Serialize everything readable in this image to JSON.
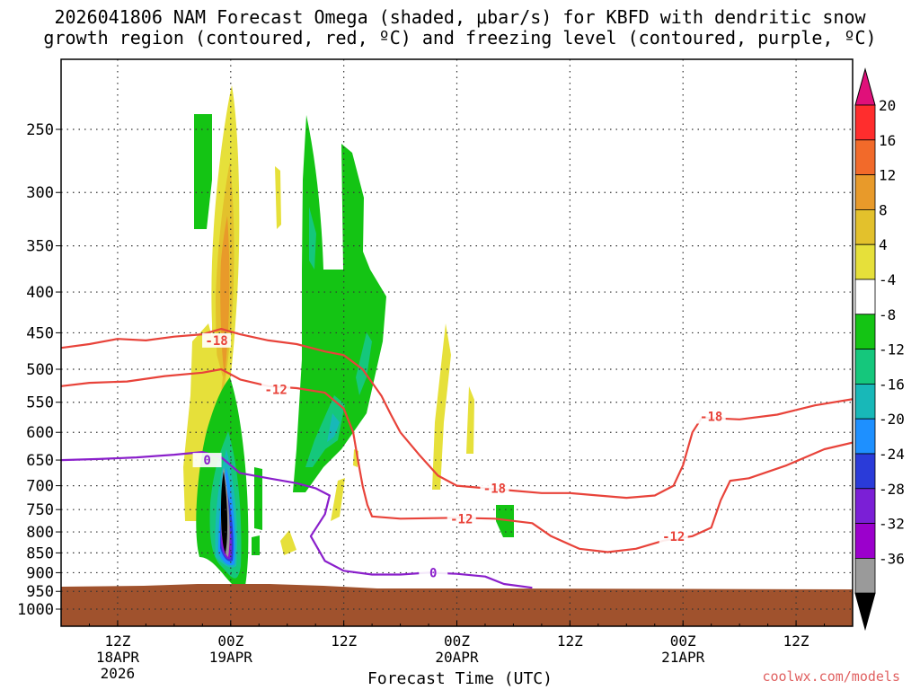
{
  "title_line1": "2026041806 NAM Forecast Omega (shaded, μbar/s) for KBFD with dendritic snow",
  "title_line2": "growth region (contoured, red, ºC) and freezing level (contoured, purple, ºC)",
  "credit": "coolwx.com/models",
  "chart_data": {
    "type": "heatmap",
    "title": "2026041806 NAM Forecast Omega (shaded, μbar/s) for KBFD with dendritic snow growth region (contoured, red, ºC) and freezing level (contoured, purple, ºC)",
    "xlabel": "Forecast Time (UTC)",
    "ylabel": "",
    "x_range_hours": [
      6,
      90
    ],
    "y_axis": "pressure (log, inverted)",
    "ylim": [
      1000,
      200
    ],
    "grid": true,
    "y_ticks": [
      250,
      300,
      350,
      400,
      450,
      500,
      550,
      600,
      650,
      700,
      750,
      800,
      850,
      900,
      950,
      1000
    ],
    "x_ticks": [
      {
        "hour": 12,
        "l1": "12Z",
        "l2": "18APR",
        "l3": "2026"
      },
      {
        "hour": 24,
        "l1": "00Z",
        "l2": "19APR",
        "l3": ""
      },
      {
        "hour": 36,
        "l1": "12Z",
        "l2": "",
        "l3": ""
      },
      {
        "hour": 48,
        "l1": "00Z",
        "l2": "20APR",
        "l3": ""
      },
      {
        "hour": 60,
        "l1": "12Z",
        "l2": "",
        "l3": ""
      },
      {
        "hour": 72,
        "l1": "00Z",
        "l2": "21APR",
        "l3": ""
      },
      {
        "hour": 84,
        "l1": "12Z",
        "l2": "",
        "l3": ""
      }
    ],
    "colorbar": {
      "ticks": [
        "20",
        "16",
        "12",
        "8",
        "4",
        "-4",
        "-8",
        "-12",
        "-16",
        "-20",
        "-24",
        "-28",
        "-32",
        "-36"
      ],
      "bins": [
        "#ff2d2d",
        "#f26a2a",
        "#e89a2a",
        "#e3c12c",
        "#e6e03a",
        "#ffffff",
        "#14c414",
        "#15c77c",
        "#18b8b8",
        "#1e90ff",
        "#2a3bd9",
        "#7b1fd6",
        "#9b00cc",
        "#9a9a9a"
      ],
      "top_arrow": "#e0107a",
      "bottom_arrow": "#000000"
    },
    "omega_regions": [
      {
        "name": "Strong rising motion near 00Z 19APR",
        "hour": 23.8,
        "p_top": 470,
        "p_bottom": 905,
        "min": -36
      },
      {
        "name": "Upper sinking motion near 00Z 19APR",
        "hour": 23.5,
        "p_top": 205,
        "p_bottom": 520,
        "max": 12
      },
      {
        "name": "Rising motion 12Z 19APR",
        "hour": 33,
        "p_top": 230,
        "p_bottom": 720,
        "min": -16
      },
      {
        "name": "Weak sinking motion 19APR",
        "hour": 46,
        "p_top": 460,
        "p_bottom": 720,
        "max": 8
      },
      {
        "name": "Weak rising motion 20APR",
        "hour": 53.5,
        "p_top": 760,
        "p_bottom": 835,
        "min": -8
      }
    ],
    "contours": [
      {
        "label": "-18",
        "color": "#e8433a",
        "points": [
          [
            6,
            470
          ],
          [
            9,
            465
          ],
          [
            12,
            458
          ],
          [
            15,
            460
          ],
          [
            18,
            455
          ],
          [
            21,
            452
          ],
          [
            23,
            445
          ],
          [
            25,
            452
          ],
          [
            28,
            460
          ],
          [
            31,
            465
          ],
          [
            34,
            475
          ],
          [
            36,
            480
          ],
          [
            38,
            500
          ],
          [
            40,
            540
          ],
          [
            41,
            570
          ],
          [
            42,
            600
          ],
          [
            44,
            640
          ],
          [
            46,
            680
          ],
          [
            48,
            700
          ],
          [
            51,
            705
          ],
          [
            54,
            710
          ],
          [
            57,
            715
          ],
          [
            60,
            715
          ],
          [
            63,
            720
          ],
          [
            66,
            725
          ],
          [
            69,
            720
          ],
          [
            71,
            700
          ],
          [
            72,
            660
          ],
          [
            73,
            600
          ],
          [
            74,
            575
          ],
          [
            78,
            578
          ],
          [
            82,
            570
          ],
          [
            86,
            555
          ],
          [
            90,
            545
          ]
        ],
        "label_at": [
          [
            22.5,
            460
          ],
          [
            52,
            705
          ],
          [
            75,
            573
          ]
        ]
      },
      {
        "label": "-12",
        "color": "#e8433a",
        "points": [
          [
            6,
            525
          ],
          [
            9,
            520
          ],
          [
            13,
            518
          ],
          [
            17,
            510
          ],
          [
            21,
            505
          ],
          [
            23,
            500
          ],
          [
            25,
            515
          ],
          [
            28,
            525
          ],
          [
            31,
            528
          ],
          [
            34,
            535
          ],
          [
            36,
            560
          ],
          [
            37,
            600
          ],
          [
            37.5,
            650
          ],
          [
            38,
            700
          ],
          [
            38.5,
            740
          ],
          [
            39,
            765
          ],
          [
            42,
            770
          ],
          [
            48,
            768
          ],
          [
            52,
            770
          ],
          [
            56,
            780
          ],
          [
            58,
            810
          ],
          [
            61,
            840
          ],
          [
            64,
            848
          ],
          [
            67,
            840
          ],
          [
            70,
            820
          ],
          [
            73,
            810
          ],
          [
            75,
            790
          ],
          [
            76,
            730
          ],
          [
            77,
            690
          ],
          [
            79,
            685
          ],
          [
            83,
            660
          ],
          [
            87,
            630
          ],
          [
            90,
            618
          ]
        ],
        "label_at": [
          [
            28.8,
            530
          ],
          [
            48.5,
            770
          ],
          [
            71,
            810
          ]
        ]
      },
      {
        "label": "0",
        "color": "#8a1fcb",
        "points": [
          [
            6,
            650
          ],
          [
            10,
            648
          ],
          [
            14,
            645
          ],
          [
            18,
            640
          ],
          [
            21,
            635
          ],
          [
            23,
            645
          ],
          [
            25,
            675
          ],
          [
            28,
            685
          ],
          [
            31,
            695
          ],
          [
            33,
            705
          ],
          [
            34.5,
            720
          ],
          [
            34,
            760
          ],
          [
            32.5,
            810
          ],
          [
            34,
            870
          ],
          [
            36,
            895
          ],
          [
            39,
            905
          ],
          [
            42,
            905
          ],
          [
            45,
            900
          ],
          [
            48,
            903
          ],
          [
            51,
            910
          ],
          [
            53,
            930
          ],
          [
            56,
            940
          ]
        ],
        "label_at": [
          [
            21.5,
            650
          ],
          [
            45.5,
            900
          ]
        ]
      }
    ]
  }
}
